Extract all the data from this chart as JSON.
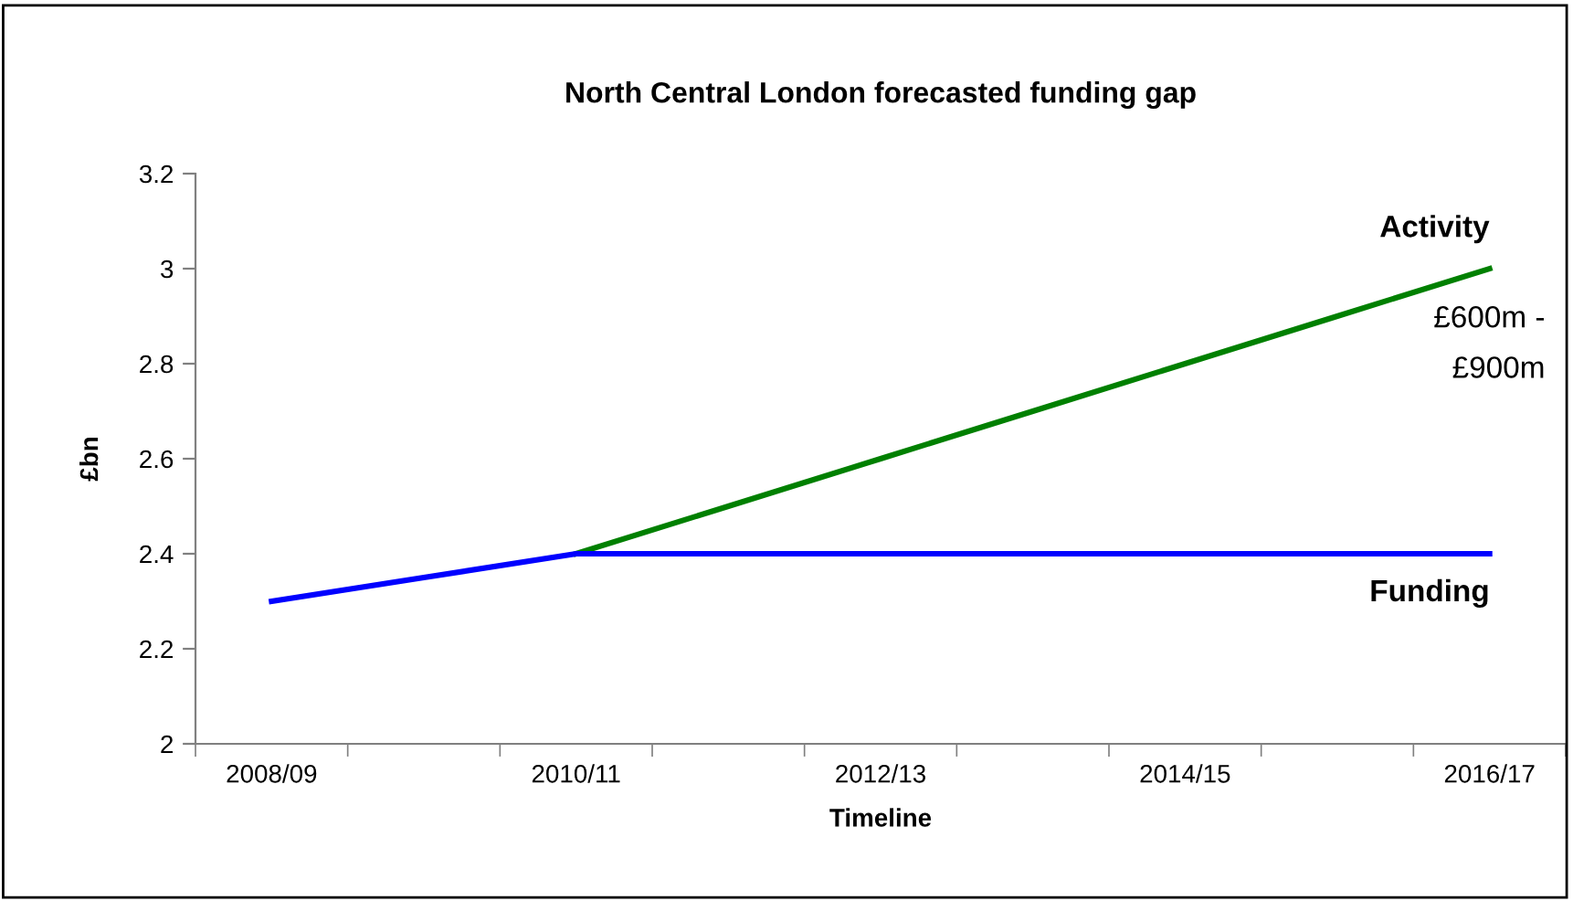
{
  "chart_data": {
    "type": "line",
    "title": "North Central London forecasted funding gap",
    "xlabel": "Timeline",
    "ylabel": "£bn",
    "categories": [
      "2008/09",
      null,
      "2010/11",
      null,
      "2012/13",
      null,
      "2014/15",
      null,
      "2016/17"
    ],
    "series": [
      {
        "name": "Activity",
        "color": "#008000",
        "values": [
          null,
          null,
          2.4,
          2.5,
          2.6,
          2.7,
          2.8,
          2.9,
          3.0
        ]
      },
      {
        "name": "Funding",
        "color": "#0000ff",
        "values": [
          2.3,
          2.35,
          2.4,
          2.4,
          2.4,
          2.4,
          2.4,
          2.4,
          2.4
        ]
      }
    ],
    "ylim": [
      2,
      3.2
    ],
    "yticks": [
      2,
      2.2,
      2.4,
      2.6,
      2.8,
      3,
      3.2
    ],
    "annotations": [
      "£600m -\n£900m"
    ],
    "grid": false,
    "legend": false,
    "marker": "none",
    "line_style": "solid"
  }
}
